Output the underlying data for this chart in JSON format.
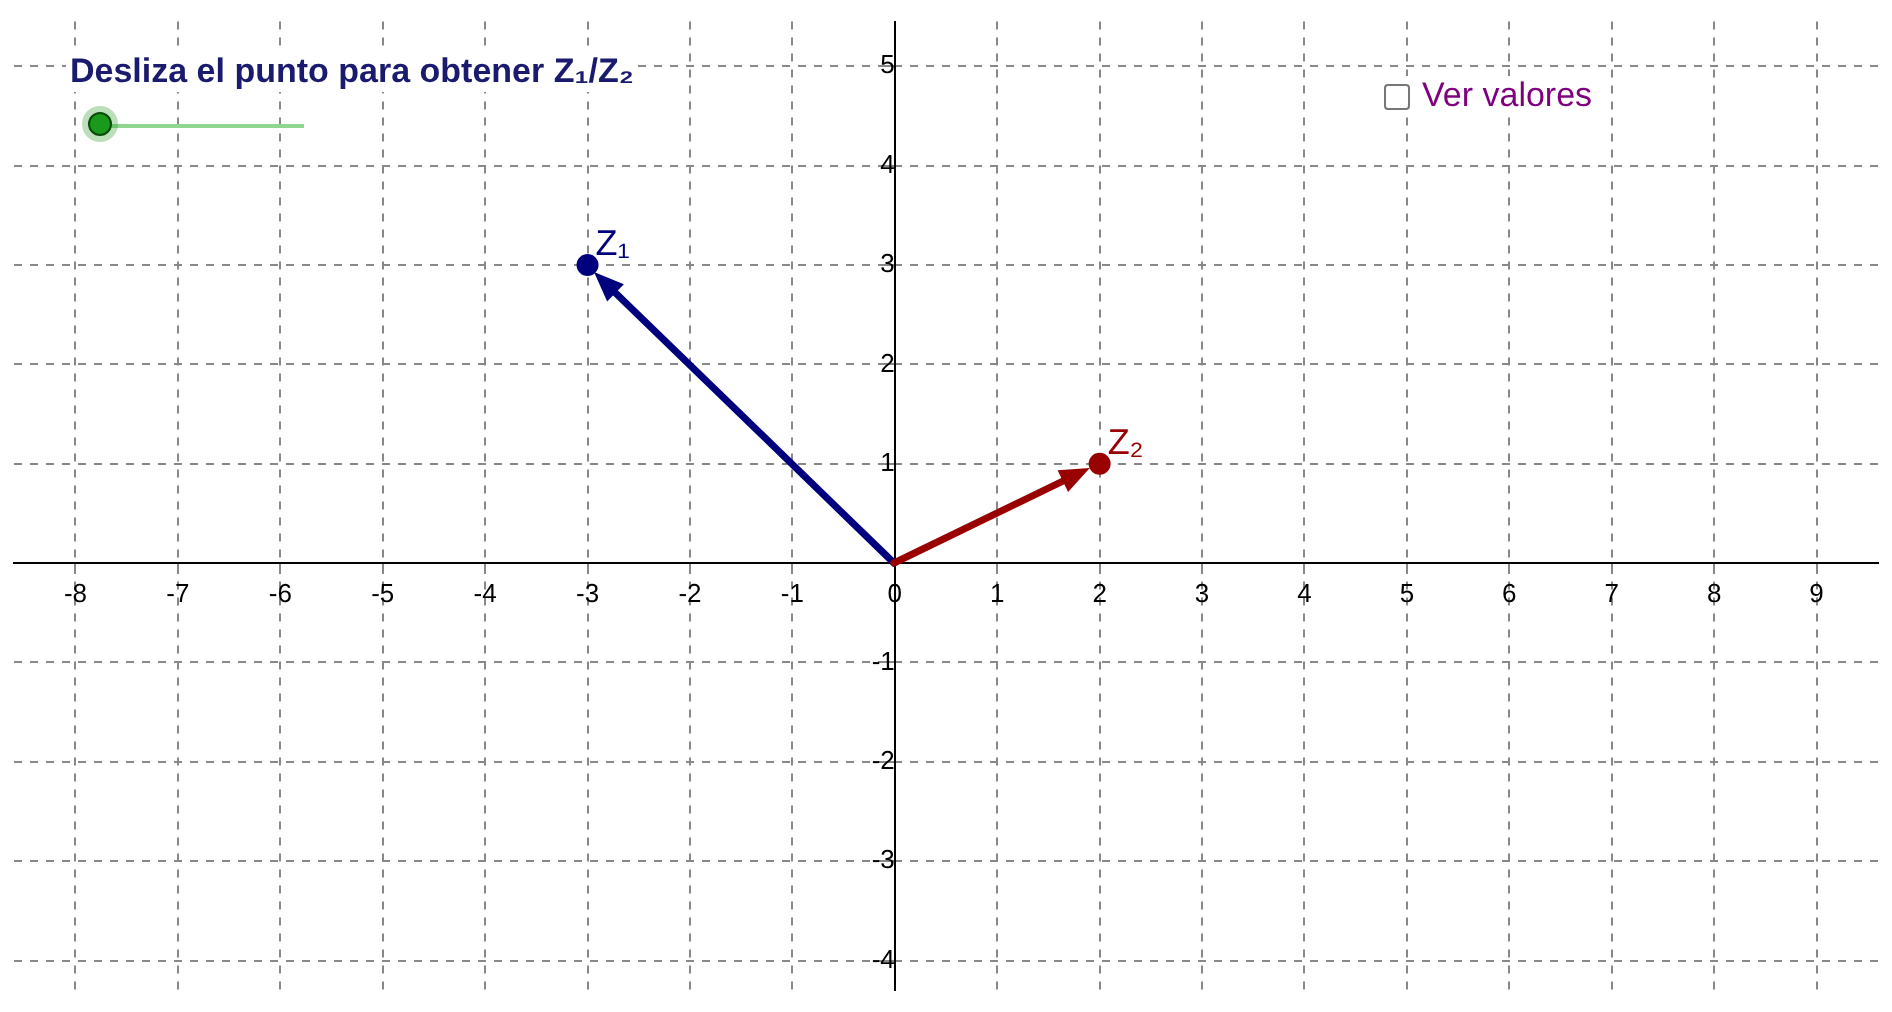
{
  "chart_data": {
    "type": "scatter",
    "title": "Desliza el punto para obtener Z₁/Z₂",
    "annotations": [
      "Ver valores"
    ],
    "series": [
      {
        "name": "Z₁",
        "color": "#00007f",
        "x": [
          -3
        ],
        "values": [
          3
        ]
      },
      {
        "name": "Z₂",
        "color": "#990000",
        "x": [
          2
        ],
        "values": [
          1
        ]
      }
    ],
    "xlim": [
      -8.6,
      9.6
    ],
    "ylim": [
      -4.3,
      5.45
    ],
    "xticks": [
      -8,
      -7,
      -6,
      -5,
      -4,
      -3,
      -2,
      -1,
      0,
      1,
      2,
      3,
      4,
      5,
      6,
      7,
      8,
      9
    ],
    "yticks": [
      -4,
      -3,
      -2,
      -1,
      {
        "value": 0,
        "label": null
      },
      1,
      2,
      3,
      4,
      5
    ],
    "grid": true,
    "marker": "circle"
  }
}
